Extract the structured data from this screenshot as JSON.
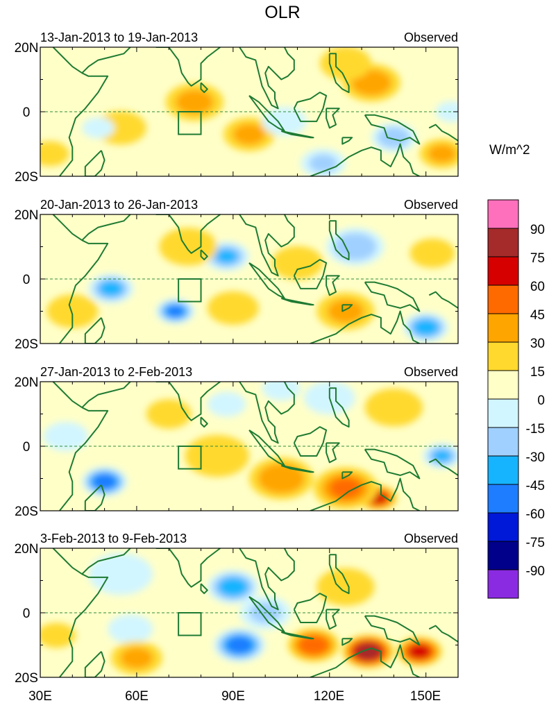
{
  "chart_data": {
    "type": "heatmap",
    "title": "OLR",
    "units": "W/m^2",
    "x_ticks": [
      "30E",
      "60E",
      "90E",
      "120E",
      "150E"
    ],
    "y_ticks": [
      "20N",
      "0",
      "20S"
    ],
    "lon_range": [
      30,
      160
    ],
    "lat_range": [
      -20,
      20
    ],
    "colorbar_levels": [
      "90",
      "75",
      "60",
      "45",
      "30",
      "15",
      "0",
      "-15",
      "-30",
      "-45",
      "-60",
      "-75",
      "-90"
    ],
    "colorbar_colors": [
      "#ff70bc",
      "#a52a2a",
      "#d60000",
      "#ff6a00",
      "#ffa500",
      "#ffd92e",
      "#ffffc8",
      "#d2f6ff",
      "#a0d0ff",
      "#16b4ff",
      "#1e7dff",
      "#0018d8",
      "#00008b",
      "#8a2be2"
    ],
    "panels": [
      {
        "left_label": "13-Jan-2013 to 19-Jan-2013",
        "right_label": "Observed",
        "anomalies": [
          {
            "lon": 78,
            "lat": 3,
            "value": 32,
            "r": 9
          },
          {
            "lon": 95,
            "lat": -7,
            "value": 30,
            "r": 8
          },
          {
            "lon": 133,
            "lat": 9,
            "value": 36,
            "r": 9
          },
          {
            "lon": 125,
            "lat": 15,
            "value": 25,
            "r": 8
          },
          {
            "lon": 155,
            "lat": -13,
            "value": 30,
            "r": 7
          },
          {
            "lon": 55,
            "lat": -5,
            "value": 18,
            "r": 8
          },
          {
            "lon": 33,
            "lat": -13,
            "value": 25,
            "r": 6
          },
          {
            "lon": 140,
            "lat": -8,
            "value": -40,
            "r": 7
          },
          {
            "lon": 118,
            "lat": -16,
            "value": -30,
            "r": 7
          },
          {
            "lon": 48,
            "lat": -5,
            "value": -25,
            "r": 5
          },
          {
            "lon": 106,
            "lat": -3,
            "value": -12,
            "r": 6
          },
          {
            "lon": 158,
            "lat": 0,
            "value": -20,
            "r": 5
          }
        ]
      },
      {
        "left_label": "20-Jan-2013 to 26-Jan-2013",
        "right_label": "Observed",
        "anomalies": [
          {
            "lon": 88,
            "lat": 7,
            "value": -45,
            "r": 7
          },
          {
            "lon": 128,
            "lat": 10,
            "value": -42,
            "r": 9
          },
          {
            "lon": 72,
            "lat": -10,
            "value": -62,
            "r": 6
          },
          {
            "lon": 52,
            "lat": -3,
            "value": -50,
            "r": 7
          },
          {
            "lon": 150,
            "lat": -15,
            "value": -55,
            "r": 7
          },
          {
            "lon": 76,
            "lat": 10,
            "value": 25,
            "r": 9
          },
          {
            "lon": 110,
            "lat": 5,
            "value": 20,
            "r": 8
          },
          {
            "lon": 125,
            "lat": -10,
            "value": 30,
            "r": 9
          },
          {
            "lon": 40,
            "lat": -10,
            "value": 22,
            "r": 8
          },
          {
            "lon": 90,
            "lat": -9,
            "value": 20,
            "r": 8
          },
          {
            "lon": 152,
            "lat": 8,
            "value": 18,
            "r": 7
          }
        ]
      },
      {
        "left_label": "27-Jan-2013 to 2-Feb-2013",
        "right_label": "Observed",
        "anomalies": [
          {
            "lon": 50,
            "lat": -11,
            "value": -72,
            "r": 7
          },
          {
            "lon": 38,
            "lat": 3,
            "value": -25,
            "r": 7
          },
          {
            "lon": 155,
            "lat": -3,
            "value": -45,
            "r": 6
          },
          {
            "lon": 105,
            "lat": 18,
            "value": -25,
            "r": 6
          },
          {
            "lon": 120,
            "lat": 15,
            "value": -15,
            "r": 8
          },
          {
            "lon": 88,
            "lat": 13,
            "value": -20,
            "r": 6
          },
          {
            "lon": 135,
            "lat": -16,
            "value": 68,
            "r": 6
          },
          {
            "lon": 125,
            "lat": -13,
            "value": 45,
            "r": 10
          },
          {
            "lon": 105,
            "lat": -10,
            "value": 40,
            "r": 10
          },
          {
            "lon": 85,
            "lat": -3,
            "value": 22,
            "r": 10
          },
          {
            "lon": 70,
            "lat": 10,
            "value": 18,
            "r": 7
          },
          {
            "lon": 140,
            "lat": 12,
            "value": 20,
            "r": 9
          }
        ]
      },
      {
        "left_label": "3-Feb-2013 to 9-Feb-2013",
        "right_label": "Observed",
        "anomalies": [
          {
            "lon": 90,
            "lat": 8,
            "value": -55,
            "r": 8
          },
          {
            "lon": 92,
            "lat": -10,
            "value": -68,
            "r": 8
          },
          {
            "lon": 100,
            "lat": 0,
            "value": -30,
            "r": 8
          },
          {
            "lon": 58,
            "lat": -5,
            "value": -28,
            "r": 7
          },
          {
            "lon": 55,
            "lat": 12,
            "value": -18,
            "r": 10
          },
          {
            "lon": 132,
            "lat": -12,
            "value": 85,
            "r": 8
          },
          {
            "lon": 148,
            "lat": -12,
            "value": 68,
            "r": 7
          },
          {
            "lon": 115,
            "lat": -10,
            "value": 55,
            "r": 8
          },
          {
            "lon": 60,
            "lat": -14,
            "value": 30,
            "r": 8
          },
          {
            "lon": 35,
            "lat": -7,
            "value": 22,
            "r": 6
          },
          {
            "lon": 125,
            "lat": 8,
            "value": 22,
            "r": 9
          },
          {
            "lon": 75,
            "lat": -3,
            "value": 10,
            "r": 6
          }
        ]
      }
    ]
  }
}
